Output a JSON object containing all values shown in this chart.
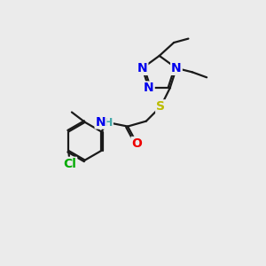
{
  "bg_color": "#ebebeb",
  "bond_color": "#1a1a1a",
  "atom_colors": {
    "N": "#0000ee",
    "S": "#bbbb00",
    "O": "#ee0000",
    "Cl": "#00aa00",
    "C": "#1a1a1a",
    "H": "#44aaaa"
  },
  "lw": 1.6,
  "fs": 10,
  "dbl_off": 0.07
}
